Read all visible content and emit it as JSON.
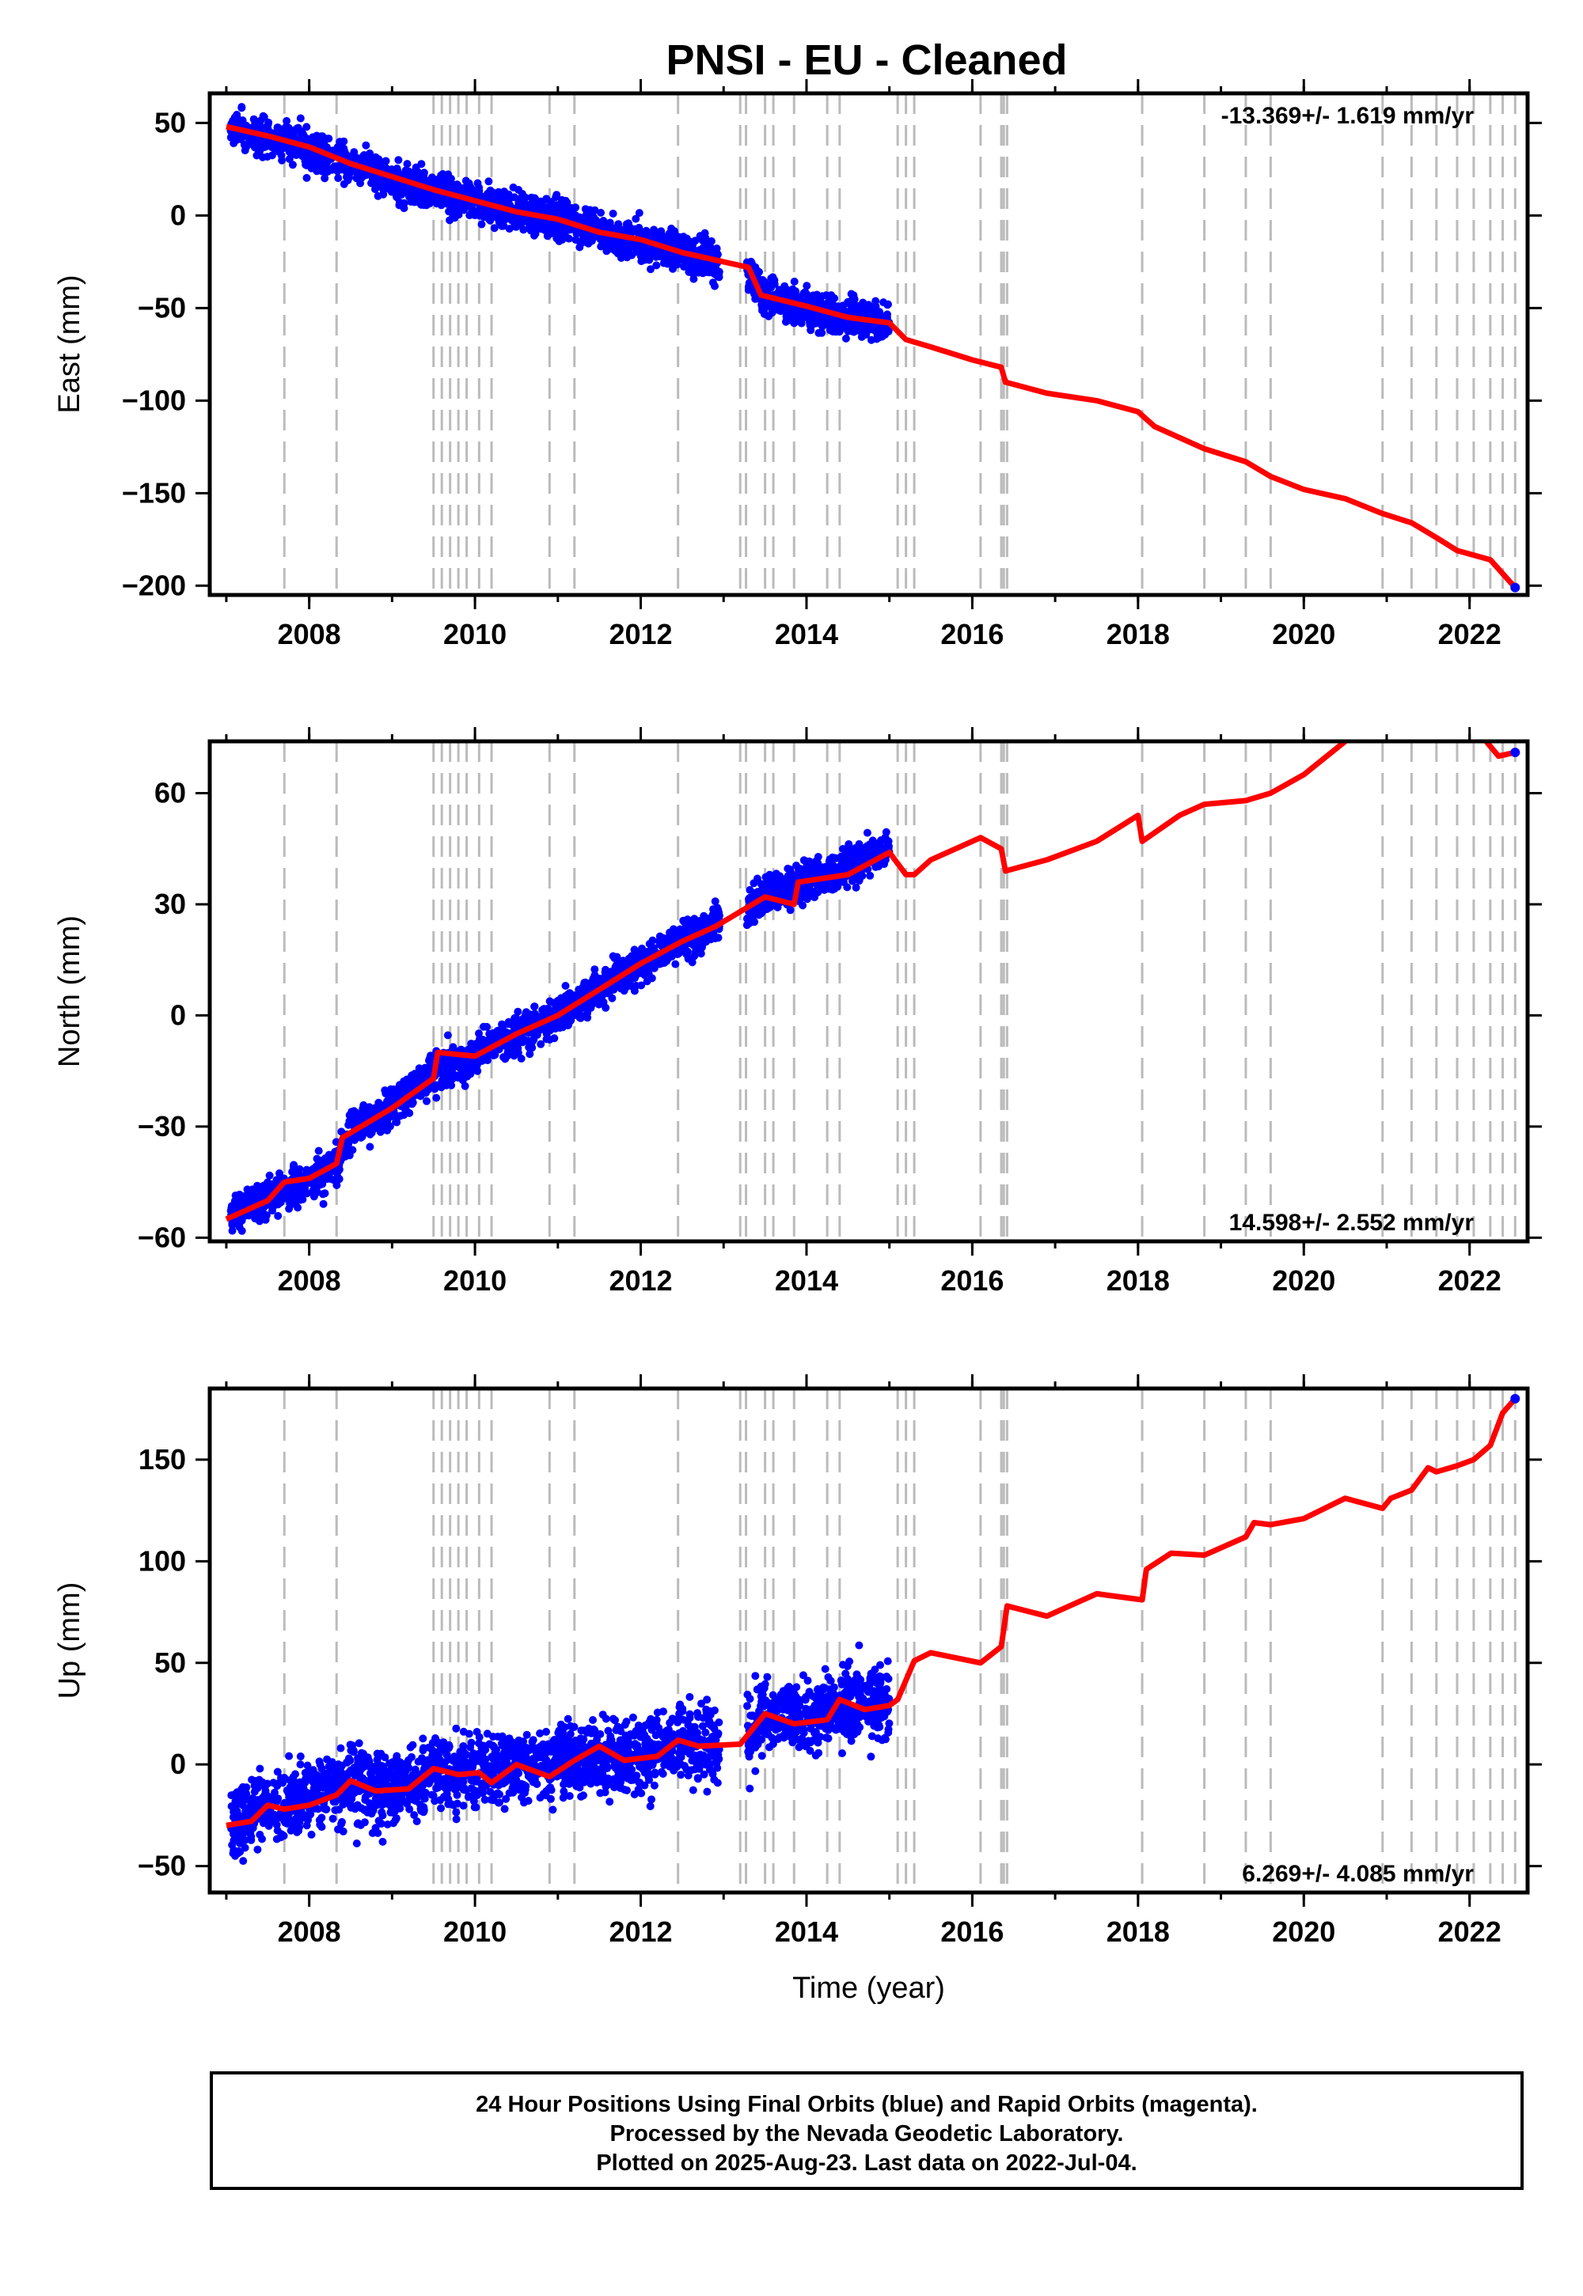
{
  "title": "PNSI  - EU - Cleaned",
  "footer": {
    "line1": "24 Hour Positions Using Final Orbits (blue) and Rapid Orbits (magenta).",
    "line2": "Processed by the Nevada Geodetic Laboratory.",
    "line3": "Plotted on 2025-Aug-23. Last data on 2022-Jul-04."
  },
  "colors": {
    "data": "#0000ff",
    "model": "#ff0000",
    "event_lines": "#bbbbbb",
    "frame": "#000000"
  },
  "chart_data": [
    {
      "type": "scatter",
      "title": "PNSI  - EU - Cleaned",
      "xlabel": "",
      "ylabel": "East (mm)",
      "xlim": [
        2006.8,
        2022.7
      ],
      "ylim": [
        -205,
        66
      ],
      "x_ticks": [
        "2008",
        "2010",
        "2012",
        "2014",
        "2016",
        "2018",
        "2020",
        "2022"
      ],
      "y_ticks": [
        "50",
        "0",
        "−50",
        "−100",
        "−150",
        "−200"
      ],
      "rate_label": "-13.369+/- 1.619 mm/yr",
      "rate_position": "top-right",
      "grid": false,
      "event_lines": [
        2007.7,
        2008.33,
        2009.5,
        2009.6,
        2009.7,
        2009.8,
        2009.9,
        2010.05,
        2010.2,
        2010.9,
        2011.2,
        2012.45,
        2013.2,
        2013.27,
        2013.5,
        2013.6,
        2013.85,
        2014.25,
        2014.4,
        2015.1,
        2015.2,
        2015.3,
        2016.1,
        2016.35,
        2016.38,
        2016.42,
        2018.05,
        2018.8,
        2019.3,
        2019.6,
        2020.95,
        2021.3,
        2021.6,
        2021.85,
        2022.05,
        2022.25,
        2022.4,
        2022.55
      ],
      "series": [
        {
          "name": "Final Orbits",
          "role": "data",
          "x_range": [
            2007.05,
            2015.0
          ],
          "values_at": [
            [
              2007.05,
              48
            ],
            [
              2007.5,
              42
            ],
            [
              2008.0,
              36
            ],
            [
              2008.5,
              27
            ],
            [
              2009.0,
              20
            ],
            [
              2009.5,
              13
            ],
            [
              2010.0,
              8
            ],
            [
              2010.5,
              3
            ],
            [
              2011.0,
              -2
            ],
            [
              2011.5,
              -8
            ],
            [
              2012.0,
              -14
            ],
            [
              2012.5,
              -20
            ],
            [
              2012.9,
              -25
            ],
            [
              2013.3,
              -30
            ],
            [
              2013.5,
              -45
            ],
            [
              2014.0,
              -50
            ],
            [
              2014.5,
              -55
            ],
            [
              2015.0,
              -58
            ]
          ],
          "scatter_mm": 5
        },
        {
          "name": "Model",
          "role": "model",
          "values_at": [
            [
              2007.0,
              48
            ],
            [
              2007.5,
              43
            ],
            [
              2008.0,
              37
            ],
            [
              2008.5,
              28
            ],
            [
              2009.0,
              21
            ],
            [
              2009.5,
              14
            ],
            [
              2010.0,
              8
            ],
            [
              2010.5,
              2
            ],
            [
              2011.0,
              -2
            ],
            [
              2011.5,
              -9
            ],
            [
              2012.0,
              -13
            ],
            [
              2012.5,
              -20
            ],
            [
              2013.0,
              -25
            ],
            [
              2013.3,
              -28
            ],
            [
              2013.45,
              -43
            ],
            [
              2014.0,
              -49
            ],
            [
              2014.5,
              -55
            ],
            [
              2015.0,
              -58
            ],
            [
              2015.2,
              -67
            ],
            [
              2015.5,
              -71
            ],
            [
              2016.0,
              -78
            ],
            [
              2016.35,
              -82
            ],
            [
              2016.4,
              -90
            ],
            [
              2016.9,
              -96
            ],
            [
              2017.5,
              -100
            ],
            [
              2018.0,
              -106
            ],
            [
              2018.2,
              -114
            ],
            [
              2018.8,
              -126
            ],
            [
              2019.3,
              -133
            ],
            [
              2019.6,
              -141
            ],
            [
              2020.0,
              -148
            ],
            [
              2020.5,
              -153
            ],
            [
              2020.95,
              -161
            ],
            [
              2021.3,
              -166
            ],
            [
              2021.6,
              -174
            ],
            [
              2021.85,
              -181
            ],
            [
              2022.25,
              -186
            ],
            [
              2022.55,
              -201
            ]
          ]
        }
      ]
    },
    {
      "type": "scatter",
      "xlabel": "",
      "ylabel": "North (mm)",
      "xlim": [
        2006.8,
        2022.7
      ],
      "ylim": [
        -61,
        74
      ],
      "x_ticks": [
        "2008",
        "2010",
        "2012",
        "2014",
        "2016",
        "2018",
        "2020",
        "2022"
      ],
      "y_ticks": [
        "60",
        "30",
        "0",
        "−30",
        "−60"
      ],
      "rate_label": "14.598+/- 2.552 mm/yr",
      "rate_position": "bottom-right",
      "grid": false,
      "event_lines": [
        2007.7,
        2008.33,
        2009.5,
        2009.6,
        2009.7,
        2009.8,
        2009.9,
        2010.05,
        2010.2,
        2010.9,
        2011.2,
        2012.45,
        2013.2,
        2013.27,
        2013.5,
        2013.6,
        2013.85,
        2014.25,
        2014.4,
        2015.1,
        2015.2,
        2015.3,
        2016.1,
        2016.35,
        2016.38,
        2016.42,
        2018.05,
        2018.8,
        2019.3,
        2019.6,
        2020.95,
        2021.3,
        2021.6,
        2021.85,
        2022.05,
        2022.25,
        2022.4,
        2022.55
      ],
      "series": [
        {
          "name": "Final Orbits",
          "role": "data",
          "x_range": [
            2007.05,
            2015.0
          ],
          "values_at": [
            [
              2007.05,
              -54
            ],
            [
              2007.5,
              -49
            ],
            [
              2008.0,
              -45
            ],
            [
              2008.33,
              -40
            ],
            [
              2008.5,
              -32
            ],
            [
              2009.0,
              -25
            ],
            [
              2009.5,
              -15
            ],
            [
              2010.0,
              -11
            ],
            [
              2010.5,
              -5
            ],
            [
              2011.0,
              0
            ],
            [
              2011.5,
              7
            ],
            [
              2012.0,
              14
            ],
            [
              2012.5,
              20
            ],
            [
              2012.9,
              24
            ],
            [
              2013.3,
              28
            ],
            [
              2013.5,
              33
            ],
            [
              2014.0,
              36
            ],
            [
              2014.5,
              40
            ],
            [
              2015.0,
              45
            ]
          ],
          "scatter_mm": 2.5
        },
        {
          "name": "Model",
          "role": "model",
          "values_at": [
            [
              2007.0,
              -55
            ],
            [
              2007.5,
              -50
            ],
            [
              2007.7,
              -45
            ],
            [
              2008.0,
              -44
            ],
            [
              2008.33,
              -40
            ],
            [
              2008.4,
              -33
            ],
            [
              2009.0,
              -25
            ],
            [
              2009.5,
              -17
            ],
            [
              2009.55,
              -10
            ],
            [
              2010.0,
              -11
            ],
            [
              2010.5,
              -5
            ],
            [
              2011.0,
              0
            ],
            [
              2011.5,
              7
            ],
            [
              2012.0,
              14
            ],
            [
              2012.5,
              20
            ],
            [
              2012.9,
              24
            ],
            [
              2013.2,
              28
            ],
            [
              2013.5,
              32
            ],
            [
              2013.85,
              30
            ],
            [
              2013.9,
              36
            ],
            [
              2014.5,
              38
            ],
            [
              2015.0,
              44
            ],
            [
              2015.2,
              38
            ],
            [
              2015.3,
              38
            ],
            [
              2015.5,
              42
            ],
            [
              2016.1,
              48
            ],
            [
              2016.35,
              45
            ],
            [
              2016.4,
              39
            ],
            [
              2016.9,
              42
            ],
            [
              2017.5,
              47
            ],
            [
              2018.0,
              54
            ],
            [
              2018.05,
              47
            ],
            [
              2018.5,
              54
            ],
            [
              2018.8,
              57
            ],
            [
              2019.3,
              58
            ],
            [
              2019.6,
              60
            ],
            [
              2020.0,
              65
            ],
            [
              2020.5,
              74
            ]
          ]
        },
        {
          "name": "Model (end)",
          "role": "model",
          "values_at": [
            [
              2022.2,
              74
            ],
            [
              2022.35,
              70
            ],
            [
              2022.55,
              71
            ]
          ]
        }
      ]
    },
    {
      "type": "scatter",
      "xlabel": "Time (year)",
      "ylabel": "Up (mm)",
      "xlim": [
        2006.8,
        2022.7
      ],
      "ylim": [
        -63,
        185
      ],
      "x_ticks": [
        "2008",
        "2010",
        "2012",
        "2014",
        "2016",
        "2018",
        "2020",
        "2022"
      ],
      "y_ticks": [
        "150",
        "100",
        "50",
        "0",
        "−50"
      ],
      "rate_label": "6.269+/- 4.085 mm/yr",
      "rate_position": "bottom-right",
      "grid": false,
      "event_lines": [
        2007.7,
        2008.33,
        2009.5,
        2009.6,
        2009.7,
        2009.8,
        2009.9,
        2010.05,
        2010.2,
        2010.9,
        2011.2,
        2012.45,
        2013.2,
        2013.27,
        2013.5,
        2013.6,
        2013.85,
        2014.25,
        2014.4,
        2015.1,
        2015.2,
        2015.3,
        2016.1,
        2016.35,
        2016.38,
        2016.42,
        2018.05,
        2018.8,
        2019.3,
        2019.6,
        2020.95,
        2021.3,
        2021.6,
        2021.85,
        2022.05,
        2022.25,
        2022.4,
        2022.55
      ],
      "series": [
        {
          "name": "Final Orbits",
          "role": "data",
          "x_range": [
            2007.05,
            2015.0
          ],
          "values_at": [
            [
              2007.05,
              -30
            ],
            [
              2007.5,
              -20
            ],
            [
              2008.0,
              -17
            ],
            [
              2008.5,
              -10
            ],
            [
              2009.0,
              -12
            ],
            [
              2009.5,
              -3
            ],
            [
              2010.0,
              -3
            ],
            [
              2010.5,
              -2
            ],
            [
              2011.0,
              0
            ],
            [
              2011.5,
              4
            ],
            [
              2012.0,
              3
            ],
            [
              2012.5,
              10
            ],
            [
              2012.9,
              10
            ],
            [
              2013.3,
              12
            ],
            [
              2013.5,
              25
            ],
            [
              2014.0,
              22
            ],
            [
              2014.5,
              30
            ],
            [
              2015.0,
              30
            ]
          ],
          "scatter_mm": 9
        },
        {
          "name": "Model",
          "role": "model",
          "values_at": [
            [
              2007.0,
              -30
            ],
            [
              2007.3,
              -28
            ],
            [
              2007.5,
              -20
            ],
            [
              2007.7,
              -22
            ],
            [
              2008.0,
              -20
            ],
            [
              2008.33,
              -15
            ],
            [
              2008.5,
              -8
            ],
            [
              2008.8,
              -13
            ],
            [
              2009.2,
              -12
            ],
            [
              2009.5,
              -2
            ],
            [
              2009.8,
              -5
            ],
            [
              2010.05,
              -4
            ],
            [
              2010.2,
              -9
            ],
            [
              2010.5,
              0
            ],
            [
              2010.9,
              -6
            ],
            [
              2011.2,
              2
            ],
            [
              2011.5,
              9
            ],
            [
              2011.8,
              2
            ],
            [
              2012.2,
              4
            ],
            [
              2012.45,
              12
            ],
            [
              2012.7,
              9
            ],
            [
              2013.2,
              10
            ],
            [
              2013.5,
              25
            ],
            [
              2013.85,
              20
            ],
            [
              2014.25,
              22
            ],
            [
              2014.4,
              32
            ],
            [
              2014.7,
              27
            ],
            [
              2015.0,
              29
            ],
            [
              2015.1,
              32
            ],
            [
              2015.3,
              51
            ],
            [
              2015.5,
              55
            ],
            [
              2016.1,
              50
            ],
            [
              2016.35,
              58
            ],
            [
              2016.42,
              78
            ],
            [
              2016.9,
              73
            ],
            [
              2017.5,
              84
            ],
            [
              2018.05,
              81
            ],
            [
              2018.1,
              96
            ],
            [
              2018.4,
              104
            ],
            [
              2018.8,
              103
            ],
            [
              2019.3,
              112
            ],
            [
              2019.4,
              119
            ],
            [
              2019.6,
              118
            ],
            [
              2020.0,
              121
            ],
            [
              2020.5,
              131
            ],
            [
              2020.95,
              126
            ],
            [
              2021.05,
              131
            ],
            [
              2021.3,
              135
            ],
            [
              2021.5,
              146
            ],
            [
              2021.6,
              144
            ],
            [
              2021.85,
              147
            ],
            [
              2022.05,
              150
            ],
            [
              2022.25,
              157
            ],
            [
              2022.4,
              173
            ],
            [
              2022.55,
              180
            ]
          ]
        }
      ]
    }
  ]
}
